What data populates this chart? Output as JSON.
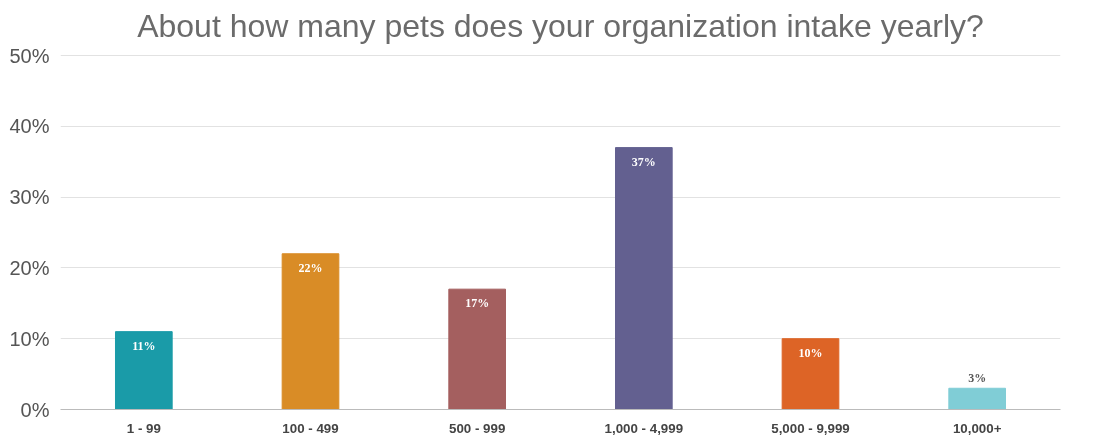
{
  "chart_data": {
    "type": "bar",
    "title": "About how many pets does your organization intake yearly?",
    "categories": [
      "1 - 99",
      "100 - 499",
      "500 - 999",
      "1,000 - 4,999",
      "5,000 - 9,999",
      "10,000+"
    ],
    "values": [
      11,
      22,
      17,
      37,
      10,
      3
    ],
    "colors": [
      "#1a9ba8",
      "#d98c26",
      "#a45f5f",
      "#636090",
      "#dd6426",
      "#80cdd6"
    ],
    "value_labels": [
      "11%",
      "22%",
      "17%",
      "37%",
      "10%",
      "3%"
    ],
    "ylim": [
      0,
      50
    ],
    "yticks": [
      {
        "value": 0,
        "label": "0%"
      },
      {
        "value": 10,
        "label": "10%"
      },
      {
        "value": 20,
        "label": "20%"
      },
      {
        "value": 30,
        "label": "30%"
      },
      {
        "value": 40,
        "label": "40%"
      },
      {
        "value": 50,
        "label": "50%"
      }
    ],
    "grid": "y"
  }
}
